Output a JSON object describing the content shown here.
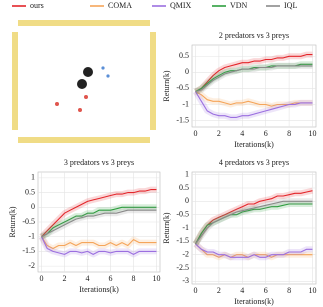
{
  "legend": {
    "names": [
      "ours",
      "COMA",
      "QMIX",
      "VDN",
      "IQL"
    ],
    "colors": [
      "#e3262b",
      "#f5a55a",
      "#9b6fe0",
      "#2e9e3f",
      "#8a8a8a"
    ]
  },
  "chart_data": [
    {
      "type": "line",
      "title": "2 predators vs 3 preys",
      "xlabel": "Iterations(k)",
      "ylabel": "Return(k)",
      "grid": true,
      "x": [
        0,
        0.5,
        1,
        1.5,
        2,
        2.5,
        3,
        3.5,
        4,
        4.5,
        5,
        5.5,
        6,
        6.5,
        7,
        7.5,
        8,
        8.5,
        9,
        9.5,
        10
      ],
      "xlim": [
        -0.3,
        10.3
      ],
      "ylim": [
        -1.7,
        0.85
      ],
      "xticks": [
        0,
        2,
        4,
        6,
        8,
        10
      ],
      "yticks": [
        0.5,
        0,
        -0.5,
        -1,
        -1.5
      ],
      "series": [
        {
          "values": [
            -0.6,
            -0.5,
            -0.3,
            -0.1,
            0.05,
            0.15,
            0.2,
            0.25,
            0.3,
            0.3,
            0.35,
            0.35,
            0.4,
            0.4,
            0.45,
            0.45,
            0.5,
            0.5,
            0.5,
            0.55,
            0.55
          ]
        },
        {
          "values": [
            -0.6,
            -0.7,
            -0.85,
            -0.9,
            -0.9,
            -0.95,
            -1.0,
            -0.95,
            -0.95,
            -0.9,
            -0.95,
            -1.0,
            -1.0,
            -1.05,
            -1.0,
            -1.0,
            -1.0,
            -0.95,
            -0.95,
            -0.95,
            -0.95
          ]
        },
        {
          "values": [
            -0.6,
            -0.9,
            -1.2,
            -1.3,
            -1.35,
            -1.35,
            -1.4,
            -1.4,
            -1.35,
            -1.35,
            -1.3,
            -1.25,
            -1.2,
            -1.15,
            -1.1,
            -1.05,
            -1.0,
            -1.0,
            -0.95,
            -0.95,
            -0.95
          ]
        },
        {
          "values": [
            -0.6,
            -0.5,
            -0.35,
            -0.2,
            -0.1,
            0,
            0.05,
            0.05,
            0.1,
            0.1,
            0.15,
            0.15,
            0.15,
            0.2,
            0.2,
            0.2,
            0.2,
            0.2,
            0.25,
            0.25,
            0.25
          ]
        },
        {
          "values": [
            -0.6,
            -0.55,
            -0.4,
            -0.25,
            -0.15,
            -0.05,
            0,
            0.05,
            0.1,
            0.1,
            0.1,
            0.15,
            0.15,
            0.15,
            0.2,
            0.2,
            0.2,
            0.2,
            0.2,
            0.2,
            0.2
          ]
        }
      ]
    },
    {
      "type": "line",
      "title": "3 predators vs 3 preys",
      "xlabel": "Iterations(k)",
      "ylabel": "Return(k)",
      "grid": true,
      "x": [
        0,
        0.5,
        1,
        1.5,
        2,
        2.5,
        3,
        3.5,
        4,
        4.5,
        5,
        5.5,
        6,
        6.5,
        7,
        7.5,
        8,
        8.5,
        9,
        9.5,
        10
      ],
      "xlim": [
        -0.3,
        10.3
      ],
      "ylim": [
        -2.2,
        1.2
      ],
      "xticks": [
        0,
        2,
        4,
        6,
        8,
        10
      ],
      "yticks": [
        1,
        0.5,
        0,
        -0.5,
        -1,
        -1.5,
        -2
      ],
      "series": [
        {
          "values": [
            -1.0,
            -0.8,
            -0.6,
            -0.4,
            -0.2,
            -0.1,
            0,
            0.1,
            0.2,
            0.25,
            0.3,
            0.35,
            0.4,
            0.45,
            0.45,
            0.5,
            0.5,
            0.55,
            0.55,
            0.6,
            0.6
          ]
        },
        {
          "values": [
            -1.0,
            -1.3,
            -1.4,
            -1.3,
            -1.3,
            -1.2,
            -1.3,
            -1.2,
            -1.2,
            -1.2,
            -1.3,
            -1.3,
            -1.2,
            -1.3,
            -1.2,
            -1.3,
            -1.1,
            -1.2,
            -1.2,
            -1.2,
            -1.2
          ]
        },
        {
          "values": [
            -1.0,
            -1.4,
            -1.5,
            -1.55,
            -1.6,
            -1.5,
            -1.5,
            -1.55,
            -1.5,
            -1.6,
            -1.5,
            -1.5,
            -1.55,
            -1.5,
            -1.5,
            -1.5,
            -1.6,
            -1.5,
            -1.5,
            -1.5,
            -1.5
          ]
        },
        {
          "values": [
            -1.0,
            -0.9,
            -0.7,
            -0.6,
            -0.5,
            -0.4,
            -0.3,
            -0.3,
            -0.2,
            -0.2,
            -0.1,
            -0.1,
            -0.1,
            -0.05,
            0,
            0,
            0,
            0,
            0,
            0,
            0
          ]
        },
        {
          "values": [
            -1.0,
            -0.9,
            -0.8,
            -0.7,
            -0.6,
            -0.5,
            -0.4,
            -0.35,
            -0.3,
            -0.3,
            -0.25,
            -0.2,
            -0.2,
            -0.2,
            -0.15,
            -0.1,
            -0.1,
            -0.1,
            -0.1,
            -0.1,
            -0.1
          ]
        }
      ]
    },
    {
      "type": "line",
      "title": "4 predators vs 3 preys",
      "xlabel": "Iterations(k)",
      "ylabel": "Return(k)",
      "grid": true,
      "x": [
        0,
        0.5,
        1,
        1.5,
        2,
        2.5,
        3,
        3.5,
        4,
        4.5,
        5,
        5.5,
        6,
        6.5,
        7,
        7.5,
        8,
        8.5,
        9,
        9.5,
        10
      ],
      "xlim": [
        -0.3,
        10.3
      ],
      "ylim": [
        -3.1,
        1.1
      ],
      "xticks": [
        0,
        2,
        4,
        6,
        8,
        10
      ],
      "yticks": [
        1,
        0.5,
        0,
        -0.5,
        -1,
        -1.5,
        -2,
        -2.5,
        -3
      ],
      "series": [
        {
          "values": [
            -1.6,
            -1.2,
            -0.9,
            -0.7,
            -0.6,
            -0.5,
            -0.4,
            -0.3,
            -0.2,
            -0.1,
            -0.1,
            0,
            0.05,
            0.1,
            0.2,
            0.2,
            0.25,
            0.3,
            0.3,
            0.35,
            0.4
          ]
        },
        {
          "values": [
            -1.6,
            -1.8,
            -2.0,
            -2.0,
            -2.1,
            -2.0,
            -2.1,
            -2.0,
            -2.0,
            -2.1,
            -2.0,
            -2.0,
            -2.0,
            -2.1,
            -2.0,
            -2.0,
            -2.0,
            -2.0,
            -2.0,
            -2.0,
            -2.0
          ]
        },
        {
          "values": [
            -1.6,
            -1.8,
            -1.9,
            -1.9,
            -2.0,
            -2.0,
            -2.1,
            -2.1,
            -2.1,
            -2.1,
            -2.0,
            -2.1,
            -2.1,
            -2.0,
            -2.0,
            -2.0,
            -1.9,
            -1.9,
            -1.9,
            -1.8,
            -1.8
          ]
        },
        {
          "values": [
            -1.6,
            -1.2,
            -0.9,
            -0.8,
            -0.7,
            -0.6,
            -0.5,
            -0.5,
            -0.4,
            -0.35,
            -0.3,
            -0.3,
            -0.25,
            -0.2,
            -0.2,
            -0.15,
            -0.1,
            -0.1,
            -0.1,
            -0.1,
            -0.1
          ]
        },
        {
          "values": [
            -1.6,
            -1.3,
            -1.0,
            -0.8,
            -0.7,
            -0.6,
            -0.5,
            -0.4,
            -0.35,
            -0.3,
            -0.25,
            -0.2,
            -0.15,
            -0.1,
            -0.05,
            0,
            0,
            0,
            0,
            0,
            0
          ]
        }
      ]
    }
  ]
}
